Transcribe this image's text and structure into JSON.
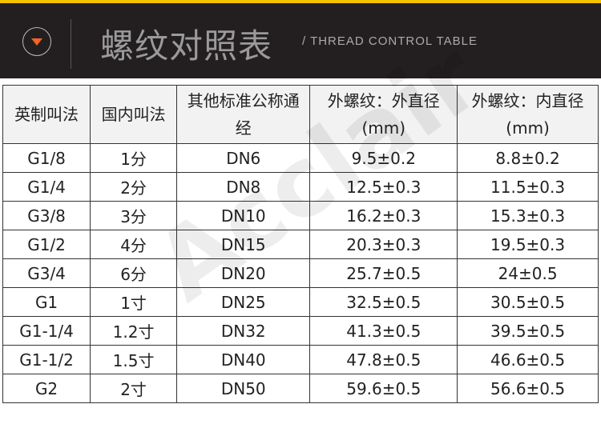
{
  "header": {
    "title": "螺纹对照表",
    "subtitle": "/ THREAD CONTROL TABLE",
    "accent": "#f26522",
    "top_bar_color": "#f5c400"
  },
  "watermark": "Acclair",
  "table": {
    "columns": [
      "英制叫法",
      "国内叫法",
      "其他标准公称通经",
      "外螺纹：外直径(mm)",
      "外螺纹：内直径(mm)"
    ],
    "rows": [
      [
        "G1/8",
        "1分",
        "DN6",
        "9.5±0.2",
        "8.8±0.2"
      ],
      [
        "G1/4",
        "2分",
        "DN8",
        "12.5±0.3",
        "11.5±0.3"
      ],
      [
        "G3/8",
        "3分",
        "DN10",
        "16.2±0.3",
        "15.3±0.3"
      ],
      [
        "G1/2",
        "4分",
        "DN15",
        "20.3±0.3",
        "19.5±0.3"
      ],
      [
        "G3/4",
        "6分",
        "DN20",
        "25.7±0.5",
        "24±0.5"
      ],
      [
        "G1",
        "1寸",
        "DN25",
        "32.5±0.5",
        "30.5±0.5"
      ],
      [
        "G1-1/4",
        "1.2寸",
        "DN32",
        "41.3±0.5",
        "39.5±0.5"
      ],
      [
        "G1-1/2",
        "1.5寸",
        "DN40",
        "47.8±0.5",
        "46.6±0.5"
      ],
      [
        "G2",
        "2寸",
        "DN50",
        "59.6±0.5",
        "56.6±0.5"
      ]
    ]
  }
}
